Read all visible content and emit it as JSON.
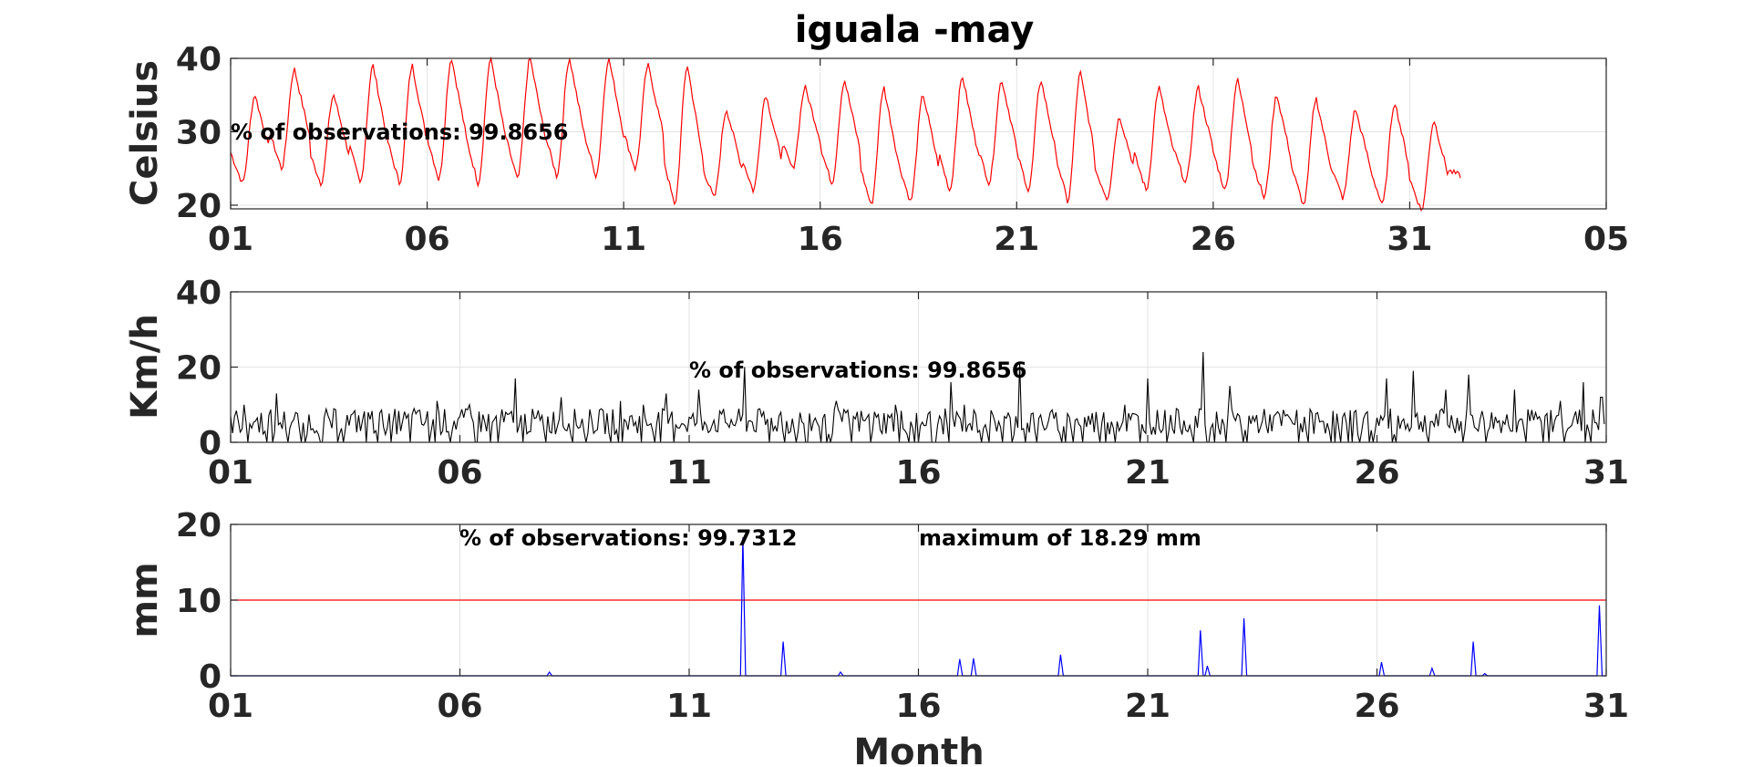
{
  "title": "iguala -may",
  "xlabel": "Month",
  "chart_data": [
    {
      "type": "line",
      "panel": "temperature",
      "ylabel": "Celsius",
      "ylim": [
        19.5,
        40
      ],
      "yticks": [
        "20",
        "30",
        "40"
      ],
      "xlim": [
        1,
        36
      ],
      "xticks": [
        "01",
        "06",
        "11",
        "16",
        "21",
        "26",
        "31",
        "05"
      ],
      "grid": true,
      "annotation": "% of observations: 99.8656",
      "series": [
        {
          "color": "#ff0000",
          "daily_min": [
            23,
            25,
            23,
            23,
            23,
            23.5,
            23,
            23.5,
            24,
            24,
            25,
            20,
            21,
            22,
            25,
            23,
            20,
            20.5,
            22,
            23,
            22,
            20.5,
            21,
            22,
            23,
            22,
            21,
            20,
            21,
            20,
            19.3,
            24
          ],
          "daily_max": [
            35,
            38.5,
            35,
            39,
            39,
            40,
            40,
            40,
            40,
            40,
            39,
            39,
            33,
            35,
            36,
            37,
            36,
            35,
            37.5,
            37,
            37,
            38,
            32,
            36,
            36,
            37,
            35,
            34.5,
            33,
            34,
            31.5,
            26
          ]
        }
      ]
    },
    {
      "type": "line",
      "panel": "wind",
      "ylabel": "Km/h",
      "ylim": [
        0,
        40
      ],
      "yticks": [
        "0",
        "20",
        "40"
      ],
      "xlim": [
        1,
        31
      ],
      "xticks": [
        "01",
        "06",
        "11",
        "16",
        "21",
        "26",
        "31"
      ],
      "grid": true,
      "annotation": "% of observations: 99.8656",
      "series": [
        {
          "color": "#000000",
          "peaks": [
            [
              1.3,
              10
            ],
            [
              2.0,
              13
            ],
            [
              4.0,
              8
            ],
            [
              5.0,
              9
            ],
            [
              5.5,
              11
            ],
            [
              6.2,
              10
            ],
            [
              7.0,
              8
            ],
            [
              7.2,
              17
            ],
            [
              8.2,
              12
            ],
            [
              9.5,
              11
            ],
            [
              10.0,
              10
            ],
            [
              10.5,
              13
            ],
            [
              11.2,
              14
            ],
            [
              12.2,
              20
            ],
            [
              13.0,
              8
            ],
            [
              14.2,
              11
            ],
            [
              15.5,
              10
            ],
            [
              16.7,
              16
            ],
            [
              17.0,
              10
            ],
            [
              18.2,
              21
            ],
            [
              19.0,
              8
            ],
            [
              20.5,
              10
            ],
            [
              21.0,
              17
            ],
            [
              22.2,
              24
            ],
            [
              22.8,
              15
            ],
            [
              24.0,
              7
            ],
            [
              25.5,
              8
            ],
            [
              26.2,
              17
            ],
            [
              26.8,
              19
            ],
            [
              27.5,
              14
            ],
            [
              28.0,
              18
            ],
            [
              29.0,
              14
            ],
            [
              30.0,
              11
            ],
            [
              30.5,
              16
            ],
            [
              30.9,
              12
            ]
          ]
        }
      ]
    },
    {
      "type": "line",
      "panel": "precipitation",
      "ylabel": "mm",
      "ylim": [
        0,
        20
      ],
      "yticks": [
        "0",
        "10",
        "20"
      ],
      "xlim": [
        1,
        31
      ],
      "xticks": [
        "01",
        "06",
        "11",
        "16",
        "21",
        "26",
        "31"
      ],
      "grid": true,
      "annotation": "% of observations: 99.7312",
      "annotation_max": "maximum of 18.29 mm",
      "threshold": {
        "value": 10,
        "color": "#ff0000"
      },
      "series": [
        {
          "color": "#0000ff",
          "peaks": [
            [
              7.95,
              0.5
            ],
            [
              12.17,
              18.29
            ],
            [
              13.05,
              4.5
            ],
            [
              14.3,
              0.5
            ],
            [
              16.9,
              2.2
            ],
            [
              17.2,
              2.3
            ],
            [
              19.1,
              2.8
            ],
            [
              22.15,
              6
            ],
            [
              22.3,
              1.3
            ],
            [
              23.1,
              7.6
            ],
            [
              26.1,
              1.8
            ],
            [
              27.2,
              1.0
            ],
            [
              28.1,
              4.5
            ],
            [
              28.35,
              0.3
            ],
            [
              30.85,
              9.3
            ]
          ]
        }
      ]
    }
  ]
}
